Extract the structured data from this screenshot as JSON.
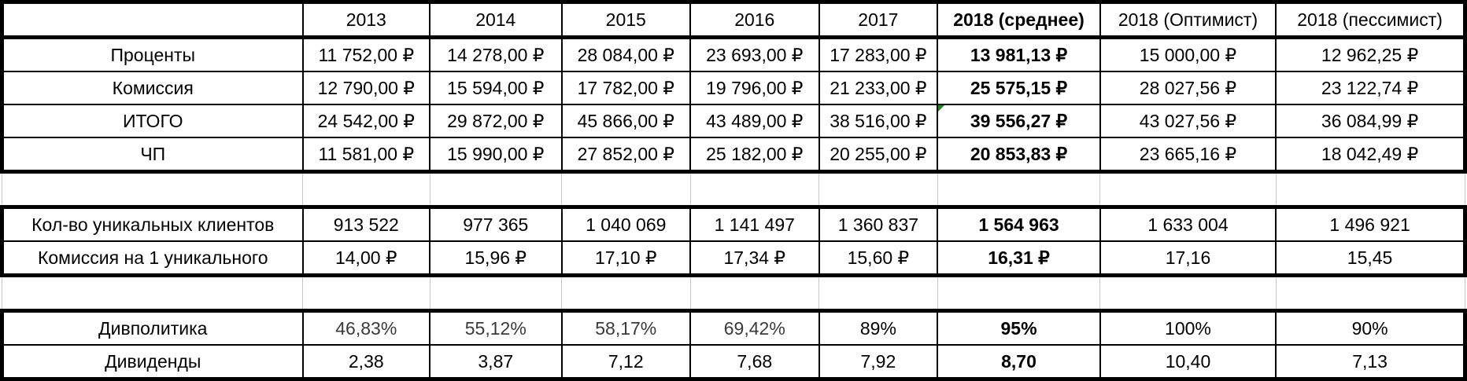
{
  "header": [
    "",
    "2013",
    "2014",
    "2015",
    "2016",
    "2017",
    "2018 (среднее)",
    "2018 (Оптимист)",
    "2018 (пессимист)"
  ],
  "block1": [
    {
      "label": "Проценты",
      "values": [
        "11 752,00 ₽",
        "14 278,00 ₽",
        "28 084,00 ₽",
        "23 693,00 ₽",
        "17 283,00 ₽",
        "13 981,13 ₽",
        "15 000,00 ₽",
        "12 962,25 ₽"
      ]
    },
    {
      "label": "Комиссия",
      "values": [
        "12 790,00 ₽",
        "15 594,00 ₽",
        "17 782,00 ₽",
        "19 796,00 ₽",
        "21 233,00 ₽",
        "25 575,15 ₽",
        "28 027,56 ₽",
        "23 122,74 ₽"
      ]
    },
    {
      "label": "ИТОГО",
      "values": [
        "24 542,00 ₽",
        "29 872,00 ₽",
        "45 866,00 ₽",
        "43 489,00 ₽",
        "38 516,00 ₽",
        "39 556,27 ₽",
        "43 027,56 ₽",
        "36 084,99 ₽"
      ]
    },
    {
      "label": "ЧП",
      "values": [
        "11 581,00 ₽",
        "15 990,00 ₽",
        "27 852,00 ₽",
        "25 182,00 ₽",
        "20 255,00 ₽",
        "20 853,83 ₽",
        "23 665,16 ₽",
        "18 042,49 ₽"
      ]
    }
  ],
  "block2": [
    {
      "label": "Кол-во уникальных клиентов",
      "values": [
        "913 522",
        "977 365",
        "1 040 069",
        "1 141 497",
        "1 360 837",
        "1 564 963",
        "1 633 004",
        "1 496 921"
      ]
    },
    {
      "label": "Комиссия на 1 уникального",
      "values": [
        "14,00 ₽",
        "15,96 ₽",
        "17,10 ₽",
        "17,34 ₽",
        "15,60 ₽",
        "16,31 ₽",
        "17,16",
        "15,45"
      ]
    }
  ],
  "block3": [
    {
      "label": "Дивполитика",
      "values": [
        "46,83%",
        "55,12%",
        "58,17%",
        "69,42%",
        "89%",
        "95%",
        "100%",
        "90%"
      ]
    },
    {
      "label": "Дивиденды",
      "values": [
        "2,38",
        "3,87",
        "7,12",
        "7,68",
        "7,92",
        "8,70",
        "10,40",
        "7,13"
      ]
    }
  ],
  "colors": {
    "comment_indicator": "#1e8a1e",
    "border": "#000000",
    "gridline": "#c8c8c8"
  }
}
